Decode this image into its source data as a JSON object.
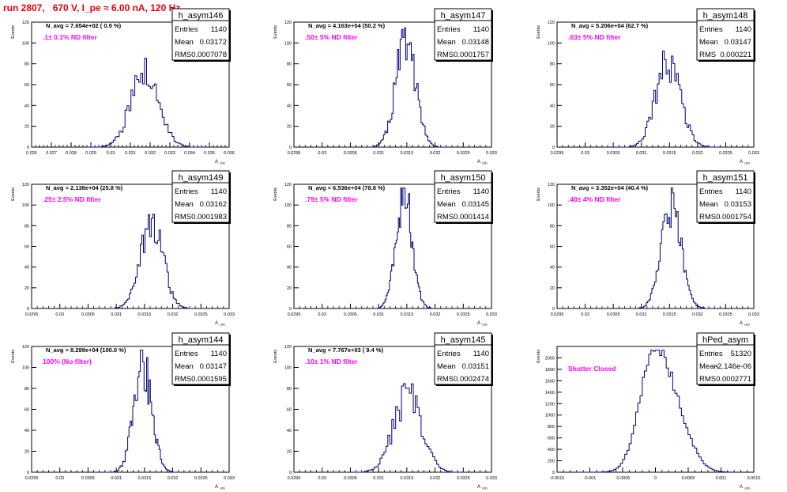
{
  "run_title": "run 2807,   670 V, I_pe ≈ 6.00 nA, 120 Hz",
  "y_axis_label": "Events",
  "x_axis_label_main": "A",
  "x_axis_label_sub": "UID",
  "stats_labels": {
    "entries": "Entries",
    "mean": "Mean",
    "rms": "RMS"
  },
  "hist_color": "#00007a",
  "annotation_color": "#ff00ff",
  "chart_data": [
    {
      "type": "histogram",
      "name": "h_asym146",
      "entries": "1140",
      "mean": "0.03172",
      "rms": "0.0007078",
      "navg": "N_avg = 7.654e+02 ( 0.9 %)",
      "filter": ".1± 0.1% ND filter",
      "xlim": [
        0.026,
        0.036
      ],
      "ylim": [
        0,
        120
      ],
      "x_ticks": [
        "0.026",
        "0.027",
        "0.028",
        "0.029",
        "0.03",
        "0.031",
        "0.032",
        "0.033",
        "0.034",
        "0.035",
        "0.036"
      ],
      "y_ticks": [
        "0",
        "20",
        "40",
        "60",
        "80",
        "100",
        "120"
      ],
      "mu": 0.03172,
      "sigma": 0.0007078,
      "peak": 70,
      "seed": 146
    },
    {
      "type": "histogram",
      "name": "h_asym147",
      "entries": "1140",
      "mean": "0.03148",
      "rms": "0.0001757",
      "navg": "N_avg = 4.163e+04 (50.2 %)",
      "filter": ".50± 5% ND filter",
      "xlim": [
        0.0295,
        0.033
      ],
      "ylim": [
        0,
        120
      ],
      "x_ticks": [
        "0.0295",
        "0.03",
        "0.0305",
        "0.031",
        "0.0315",
        "0.032",
        "0.0325",
        "0.033"
      ],
      "y_ticks": [
        "0",
        "20",
        "40",
        "60",
        "80",
        "100",
        "120"
      ],
      "mu": 0.03148,
      "sigma": 0.0001757,
      "peak": 102,
      "seed": 147
    },
    {
      "type": "histogram",
      "name": "h_asym148",
      "entries": "1140",
      "mean": "0.03147",
      "rms": "0.000221",
      "navg": "N_avg = 5.206e+04 (62.7 %)",
      "filter": ".63± 5% ND filter",
      "xlim": [
        0.0295,
        0.033
      ],
      "ylim": [
        0,
        120
      ],
      "x_ticks": [
        "0.0295",
        "0.03",
        "0.0305",
        "0.031",
        "0.0315",
        "0.032",
        "0.0325",
        "0.033"
      ],
      "y_ticks": [
        "0",
        "20",
        "40",
        "60",
        "80",
        "100",
        "120"
      ],
      "mu": 0.03147,
      "sigma": 0.000221,
      "peak": 80,
      "seed": 148
    },
    {
      "type": "histogram",
      "name": "h_asym149",
      "entries": "1140",
      "mean": "0.03162",
      "rms": "0.0001983",
      "navg": "N_avg = 2.138e+04 (25.8 %)",
      "filter": ".25± 2.5% ND filter",
      "xlim": [
        0.0295,
        0.033
      ],
      "ylim": [
        0,
        120
      ],
      "x_ticks": [
        "0.0295",
        "0.03",
        "0.0305",
        "0.031",
        "0.0315",
        "0.032",
        "0.0325",
        "0.033"
      ],
      "y_ticks": [
        "0",
        "20",
        "40",
        "60",
        "80",
        "100",
        "120"
      ],
      "mu": 0.03162,
      "sigma": 0.0001983,
      "peak": 85,
      "seed": 149
    },
    {
      "type": "histogram",
      "name": "h_asym150",
      "entries": "1140",
      "mean": "0.03145",
      "rms": "0.0001414",
      "navg": "N_avg = 6.536e+04 (78.8 %)",
      "filter": ".79± 5% ND filter",
      "xlim": [
        0.0295,
        0.033
      ],
      "ylim": [
        0,
        120
      ],
      "x_ticks": [
        "0.0295",
        "0.03",
        "0.0305",
        "0.031",
        "0.0315",
        "0.032",
        "0.0325",
        "0.033"
      ],
      "y_ticks": [
        "0",
        "20",
        "40",
        "60",
        "80",
        "100",
        "120"
      ],
      "mu": 0.03145,
      "sigma": 0.0001414,
      "peak": 110,
      "seed": 150
    },
    {
      "type": "histogram",
      "name": "h_asym151",
      "entries": "1140",
      "mean": "0.03153",
      "rms": "0.0001754",
      "navg": "N_avg = 3.352e+04 (40.4 %)",
      "filter": ".40± 4% ND filter",
      "xlim": [
        0.0295,
        0.033
      ],
      "ylim": [
        0,
        120
      ],
      "x_ticks": [
        "0.0295",
        "0.03",
        "0.0305",
        "0.031",
        "0.0315",
        "0.032",
        "0.0325",
        "0.033"
      ],
      "y_ticks": [
        "0",
        "20",
        "40",
        "60",
        "80",
        "100",
        "120"
      ],
      "mu": 0.03153,
      "sigma": 0.0001754,
      "peak": 95,
      "seed": 151
    },
    {
      "type": "histogram",
      "name": "h_asym144",
      "entries": "1140",
      "mean": "0.03147",
      "rms": "0.0001595",
      "navg": "N_avg = 8.299e+04 (100.0 %)",
      "filter": "100% (No filter)",
      "xlim": [
        0.0295,
        0.033
      ],
      "ylim": [
        0,
        120
      ],
      "x_ticks": [
        "0.0295",
        "0.03",
        "0.0305",
        "0.031",
        "0.0315",
        "0.032",
        "0.0325",
        "0.033"
      ],
      "y_ticks": [
        "0",
        "20",
        "40",
        "60",
        "80",
        "100",
        "120"
      ],
      "mu": 0.03147,
      "sigma": 0.0001595,
      "peak": 104,
      "seed": 144
    },
    {
      "type": "histogram",
      "name": "h_asym145",
      "entries": "1140",
      "mean": "0.03151",
      "rms": "0.0002474",
      "navg": "N_avg = 7.767e+03 ( 9.4 %)",
      "filter": ".10± 1% ND filter",
      "xlim": [
        0.0295,
        0.033
      ],
      "ylim": [
        0,
        120
      ],
      "x_ticks": [
        "0.0295",
        "0.03",
        "0.0305",
        "0.031",
        "0.0315",
        "0.032",
        "0.0325",
        "0.033"
      ],
      "y_ticks": [
        "0",
        "20",
        "40",
        "60",
        "80",
        "100",
        "120"
      ],
      "mu": 0.03151,
      "sigma": 0.0002474,
      "peak": 72,
      "seed": 145
    },
    {
      "type": "histogram",
      "name": "hPed_asym",
      "entries": "51320",
      "mean": "-2.146e-06",
      "rms": "0.0002771",
      "navg": "",
      "filter": "Shutter Closed",
      "xlim": [
        -0.0015,
        0.0015
      ],
      "ylim": [
        0,
        2200
      ],
      "x_ticks": [
        "-0.0015",
        "-0.001",
        "-0.0005",
        "0",
        "0.0005",
        "0.001",
        "0.0015"
      ],
      "y_ticks": [
        "0",
        "200",
        "400",
        "600",
        "800",
        "1000",
        "1200",
        "1400",
        "1600",
        "1800",
        "2000"
      ],
      "mu": -2.15e-06,
      "sigma": 0.0002771,
      "peak": 2060,
      "seed": 999,
      "shape": "pedestal"
    }
  ]
}
